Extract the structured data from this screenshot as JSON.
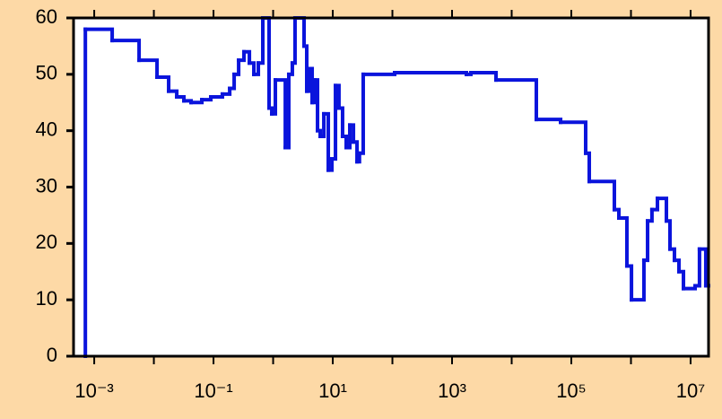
{
  "chart_data": {
    "type": "line",
    "step": "post",
    "color": "#0a14dc",
    "log_x": true,
    "xlim": [
      0.00045,
      20000000
    ],
    "ylim": [
      0,
      60
    ],
    "yticks": [
      0,
      10,
      20,
      30,
      40,
      50,
      60
    ],
    "xticks": [
      {
        "value": 0.001,
        "label": "10⁻³"
      },
      {
        "value": 0.1,
        "label": "10⁻¹"
      },
      {
        "value": 10,
        "label": "10¹"
      },
      {
        "value": 1000,
        "label": "10³"
      },
      {
        "value": 100000,
        "label": "10⁵"
      },
      {
        "value": 10000000,
        "label": "10⁷"
      }
    ],
    "minor_xticks": [
      0.01,
      1,
      100,
      10000,
      1000000
    ],
    "x": [
      0.00071,
      0.00071,
      0.002,
      0.00565,
      0.0113,
      0.0177,
      0.0242,
      0.0319,
      0.0421,
      0.0638,
      0.0902,
      0.141,
      0.187,
      0.222,
      0.264,
      0.324,
      0.4,
      0.475,
      0.565,
      0.671,
      0.855,
      0.95,
      1.09,
      1.6,
      1.83,
      2.1,
      2.33,
      3.3,
      3.66,
      4.06,
      4.51,
      5.0,
      5.55,
      6.15,
      7.08,
      8.41,
      9.66,
      11.1,
      12.7,
      14.6,
      16.8,
      19.3,
      22.2,
      25.5,
      28,
      32.4,
      109,
      1740,
      2070,
      5460,
      25900,
      66100,
      174000,
      200000,
      527000,
      627000,
      855000,
      1020000,
      1650000,
      1900000,
      2250000,
      2780000,
      3930000,
      4510000,
      5360000,
      6380000,
      7590000,
      11900000,
      14100000,
      18000000
    ],
    "values": [
      0,
      58,
      56,
      52.5,
      49.5,
      47,
      46,
      45.3,
      45,
      45.5,
      46,
      46.5,
      47.5,
      50,
      52.5,
      54,
      52,
      50,
      52,
      60,
      44,
      43,
      49,
      37,
      50,
      52,
      60,
      55,
      47,
      51,
      45,
      49,
      40,
      39,
      43,
      33,
      35,
      48,
      44,
      39,
      37,
      41,
      38,
      34.5,
      36,
      50,
      50.3,
      50,
      50.3,
      49,
      42,
      41.5,
      36,
      31,
      26,
      24.5,
      16,
      10,
      17,
      24,
      26,
      28,
      24,
      19,
      17,
      15,
      12,
      12.5,
      19,
      12.5
    ]
  }
}
